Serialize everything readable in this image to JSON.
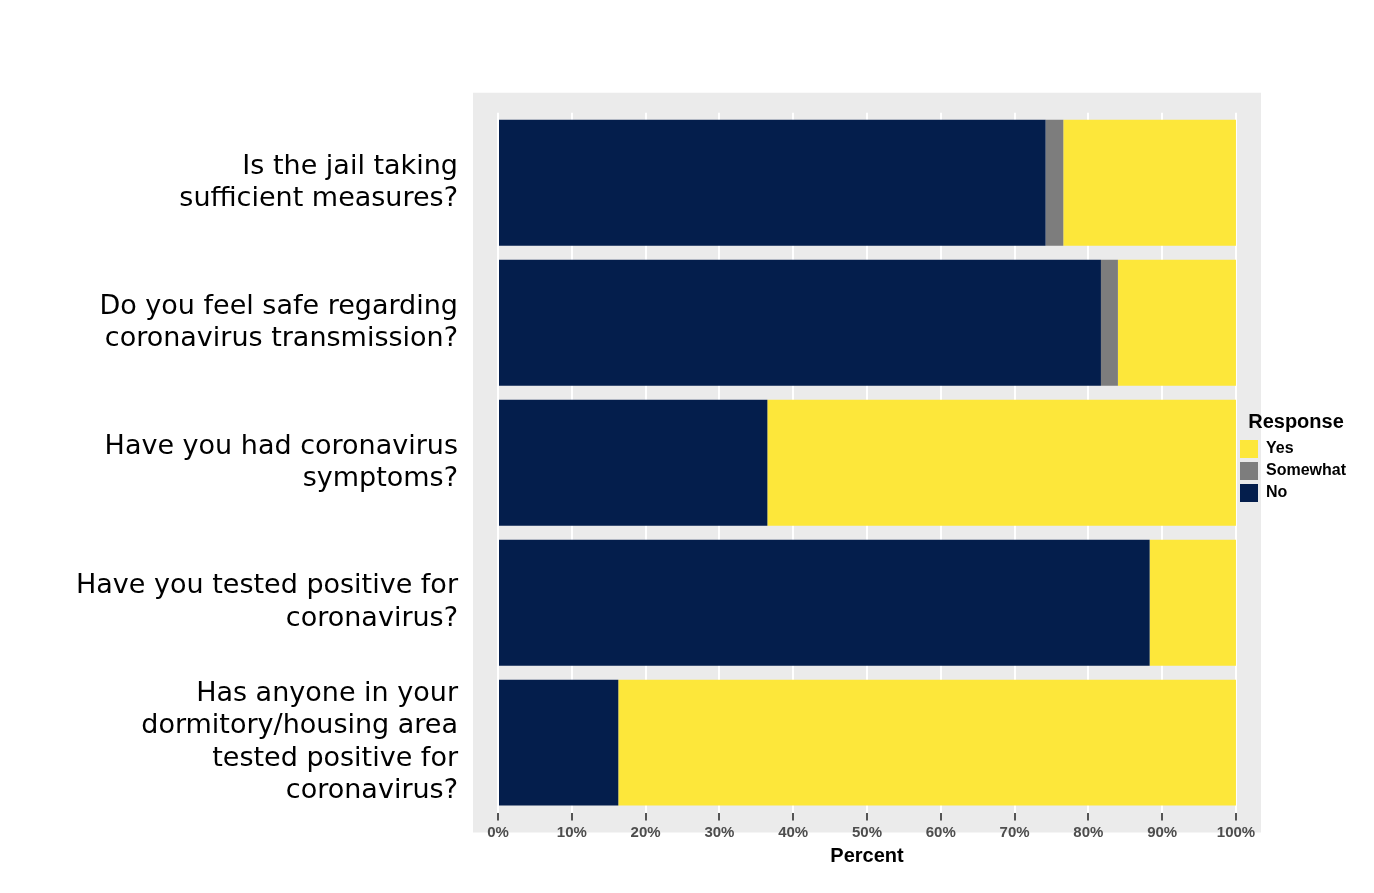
{
  "chart_data": {
    "type": "bar",
    "orientation": "horizontal",
    "stacked": true,
    "xlabel": "Percent",
    "legend_title": "Response",
    "legend": "right",
    "grid": "x",
    "categories": [
      "Is the jail taking sufficient measures?",
      "Do you feel safe regarding coronavirus transmission?",
      "Have you had coronavirus symptoms?",
      "Have you tested positive for coronavirus?",
      "Has anyone in your dormitory/housing area tested positive for coronavirus?"
    ],
    "series": [
      {
        "name": "No",
        "color": "#041e4c",
        "values": [
          74.2,
          81.7,
          36.5,
          88.3,
          16.3
        ]
      },
      {
        "name": "Somewhat",
        "color": "#7d7d7d",
        "values": [
          2.4,
          2.3,
          0,
          0,
          0
        ]
      },
      {
        "name": "Yes",
        "color": "#fde73a",
        "values": [
          23.4,
          16.0,
          63.5,
          11.7,
          83.7
        ]
      }
    ],
    "xlim": [
      0,
      100
    ],
    "xticks": [
      {
        "value": 0,
        "label": "0%"
      },
      {
        "value": 10,
        "label": "10%"
      },
      {
        "value": 20,
        "label": "20%"
      },
      {
        "value": 30,
        "label": "30%"
      },
      {
        "value": 40,
        "label": "40%"
      },
      {
        "value": 50,
        "label": "50%"
      },
      {
        "value": 60,
        "label": "60%"
      },
      {
        "value": 70,
        "label": "70%"
      },
      {
        "value": 80,
        "label": "80%"
      },
      {
        "value": 90,
        "label": "90%"
      },
      {
        "value": 100,
        "label": "100%"
      }
    ]
  }
}
